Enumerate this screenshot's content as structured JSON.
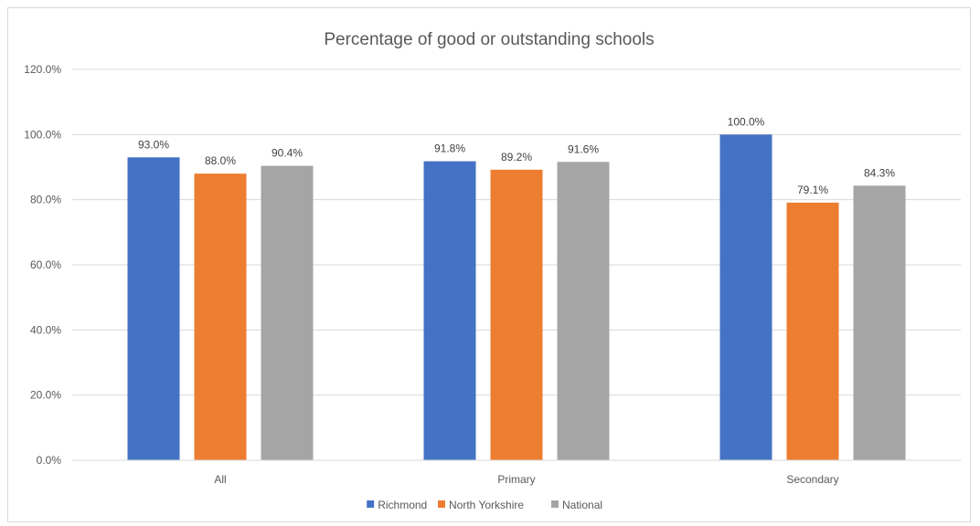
{
  "chart_data": {
    "type": "bar",
    "title": "Percentage of good or outstanding schools",
    "categories": [
      "All",
      "Primary",
      "Secondary"
    ],
    "series": [
      {
        "name": "Richmond",
        "color": "#4472C4",
        "values": [
          93.0,
          91.8,
          100.0
        ],
        "labels": [
          "93.0%",
          "91.8%",
          "100.0%"
        ]
      },
      {
        "name": "North Yorkshire",
        "color": "#ED7D31",
        "values": [
          88.0,
          89.2,
          79.1
        ],
        "labels": [
          "88.0%",
          "89.2%",
          "79.1%"
        ]
      },
      {
        "name": "National",
        "color": "#A5A5A5",
        "values": [
          90.4,
          91.6,
          84.3
        ],
        "labels": [
          "90.4%",
          "91.6%",
          "84.3%"
        ]
      }
    ],
    "ylim": [
      0,
      120
    ],
    "yticks": [
      0,
      20,
      40,
      60,
      80,
      100,
      120
    ],
    "ytick_labels": [
      "0.0%",
      "20.0%",
      "40.0%",
      "60.0%",
      "80.0%",
      "100.0%",
      "120.0%"
    ],
    "grid": true,
    "legend_position": "bottom"
  }
}
